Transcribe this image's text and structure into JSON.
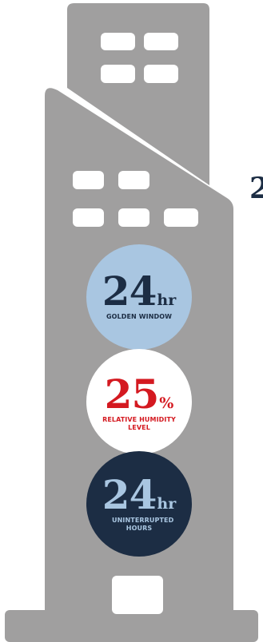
{
  "colors": {
    "building": "#a09f9f",
    "window": "#ffffff",
    "navy": "#1c2d44",
    "light_blue": "#a9c6e1",
    "red": "#d41920"
  },
  "edge_text": "2",
  "stats": [
    {
      "value": "24",
      "unit": "hr",
      "label": "GOLDEN WINDOW"
    },
    {
      "value": "25",
      "unit": "%",
      "label": "RELATIVE HUMIDITY LEVEL"
    },
    {
      "value": "24",
      "unit": "hr",
      "label": "UNINTERRUPTED HOURS"
    }
  ]
}
